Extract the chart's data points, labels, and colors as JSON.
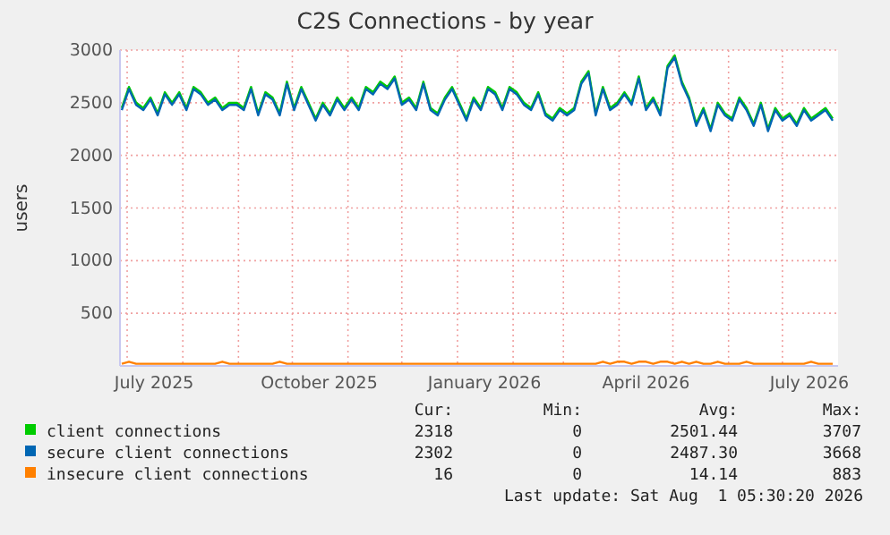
{
  "chart_data": {
    "type": "line",
    "title": "C2S Connections - by year",
    "ylabel": "users",
    "x": [
      "2025-06-28",
      "2025-07-02",
      "2025-07-06",
      "2025-07-10",
      "2025-07-14",
      "2025-07-18",
      "2025-07-22",
      "2025-07-26",
      "2025-07-30",
      "2025-08-03",
      "2025-08-07",
      "2025-08-11",
      "2025-08-15",
      "2025-08-19",
      "2025-08-23",
      "2025-08-27",
      "2025-08-31",
      "2025-09-04",
      "2025-09-08",
      "2025-09-12",
      "2025-09-16",
      "2025-09-20",
      "2025-09-24",
      "2025-09-28",
      "2025-10-02",
      "2025-10-06",
      "2025-10-10",
      "2025-10-14",
      "2025-10-18",
      "2025-10-22",
      "2025-10-26",
      "2025-10-30",
      "2025-11-03",
      "2025-11-07",
      "2025-11-11",
      "2025-11-15",
      "2025-11-19",
      "2025-11-23",
      "2025-11-27",
      "2025-12-01",
      "2025-12-05",
      "2025-12-09",
      "2025-12-13",
      "2025-12-17",
      "2025-12-21",
      "2025-12-25",
      "2025-12-29",
      "2026-01-02",
      "2026-01-06",
      "2026-01-10",
      "2026-01-14",
      "2026-01-18",
      "2026-01-22",
      "2026-01-26",
      "2026-01-30",
      "2026-02-03",
      "2026-02-07",
      "2026-02-11",
      "2026-02-15",
      "2026-02-19",
      "2026-02-23",
      "2026-02-27",
      "2026-03-03",
      "2026-03-07",
      "2026-03-11",
      "2026-03-15",
      "2026-03-19",
      "2026-03-23",
      "2026-03-27",
      "2026-03-31",
      "2026-04-04",
      "2026-04-08",
      "2026-04-12",
      "2026-04-16",
      "2026-04-20",
      "2026-04-24",
      "2026-04-28",
      "2026-05-02",
      "2026-05-06",
      "2026-05-10",
      "2026-05-14",
      "2026-05-18",
      "2026-05-22",
      "2026-05-26",
      "2026-05-30",
      "2026-06-03",
      "2026-06-07",
      "2026-06-11",
      "2026-06-15",
      "2026-06-19",
      "2026-06-23",
      "2026-06-27",
      "2026-07-01",
      "2026-07-05",
      "2026-07-09",
      "2026-07-13",
      "2026-07-17",
      "2026-07-21",
      "2026-07-25",
      "2026-07-29"
    ],
    "series": [
      {
        "name": "client connections",
        "color": "#00cc00",
        "values": [
          2450,
          2650,
          2500,
          2450,
          2550,
          2400,
          2600,
          2500,
          2600,
          2450,
          2650,
          2600,
          2500,
          2550,
          2450,
          2500,
          2500,
          2450,
          2650,
          2400,
          2600,
          2550,
          2400,
          2700,
          2450,
          2650,
          2500,
          2350,
          2500,
          2400,
          2550,
          2450,
          2550,
          2450,
          2650,
          2600,
          2700,
          2650,
          2750,
          2500,
          2550,
          2450,
          2700,
          2450,
          2400,
          2550,
          2650,
          2500,
          2350,
          2550,
          2450,
          2650,
          2600,
          2450,
          2650,
          2600,
          2500,
          2450,
          2600,
          2400,
          2350,
          2450,
          2400,
          2450,
          2700,
          2800,
          2400,
          2650,
          2450,
          2500,
          2600,
          2500,
          2750,
          2450,
          2550,
          2400,
          2850,
          2950,
          2700,
          2550,
          2300,
          2450,
          2250,
          2500,
          2400,
          2350,
          2550,
          2450,
          2300,
          2500,
          2250,
          2450,
          2350,
          2400,
          2300,
          2450,
          2350,
          2400,
          2450,
          2350
        ]
      },
      {
        "name": "secure client connections",
        "color": "#0066b3",
        "values": [
          2430,
          2630,
          2480,
          2430,
          2530,
          2380,
          2580,
          2480,
          2580,
          2430,
          2630,
          2580,
          2480,
          2530,
          2430,
          2480,
          2480,
          2430,
          2630,
          2380,
          2580,
          2530,
          2380,
          2680,
          2430,
          2630,
          2480,
          2330,
          2480,
          2380,
          2530,
          2430,
          2530,
          2430,
          2630,
          2580,
          2680,
          2630,
          2730,
          2480,
          2530,
          2430,
          2680,
          2430,
          2380,
          2530,
          2630,
          2480,
          2330,
          2530,
          2430,
          2630,
          2580,
          2430,
          2630,
          2580,
          2480,
          2430,
          2580,
          2380,
          2330,
          2430,
          2380,
          2430,
          2680,
          2780,
          2380,
          2630,
          2430,
          2480,
          2580,
          2480,
          2730,
          2430,
          2530,
          2380,
          2830,
          2930,
          2680,
          2530,
          2280,
          2430,
          2230,
          2480,
          2380,
          2330,
          2530,
          2430,
          2280,
          2480,
          2230,
          2430,
          2330,
          2380,
          2280,
          2430,
          2330,
          2380,
          2430,
          2330
        ]
      },
      {
        "name": "insecure client connections",
        "color": "#ff8000",
        "values": [
          20,
          40,
          20,
          20,
          20,
          20,
          20,
          20,
          20,
          20,
          20,
          20,
          20,
          20,
          40,
          20,
          20,
          20,
          20,
          20,
          20,
          20,
          40,
          20,
          20,
          20,
          20,
          20,
          20,
          20,
          20,
          20,
          20,
          20,
          20,
          20,
          20,
          20,
          20,
          20,
          20,
          20,
          20,
          20,
          20,
          20,
          20,
          20,
          20,
          20,
          20,
          20,
          20,
          20,
          20,
          20,
          20,
          20,
          20,
          20,
          20,
          20,
          20,
          20,
          20,
          20,
          20,
          40,
          20,
          40,
          40,
          20,
          40,
          40,
          20,
          40,
          40,
          20,
          40,
          20,
          40,
          20,
          20,
          40,
          20,
          20,
          20,
          40,
          20,
          20,
          20,
          20,
          20,
          20,
          20,
          20,
          40,
          20,
          20,
          20
        ]
      }
    ],
    "xlim": [
      "2025-06-27",
      "2026-08-01"
    ],
    "xticks": [
      {
        "value": "2025-07-01",
        "label": null
      },
      {
        "value": "2025-07-16",
        "label": "July 2025"
      },
      {
        "value": "2025-08-01",
        "label": null
      },
      {
        "value": "2025-09-01",
        "label": null
      },
      {
        "value": "2025-10-01",
        "label": null
      },
      {
        "value": "2025-10-16",
        "label": "October 2025"
      },
      {
        "value": "2025-11-01",
        "label": null
      },
      {
        "value": "2025-12-01",
        "label": null
      },
      {
        "value": "2026-01-01",
        "label": null
      },
      {
        "value": "2026-01-16",
        "label": "January 2026"
      },
      {
        "value": "2026-02-01",
        "label": null
      },
      {
        "value": "2026-03-01",
        "label": null
      },
      {
        "value": "2026-04-01",
        "label": null
      },
      {
        "value": "2026-04-16",
        "label": "April 2026"
      },
      {
        "value": "2026-05-01",
        "label": null
      },
      {
        "value": "2026-06-01",
        "label": null
      },
      {
        "value": "2026-07-01",
        "label": null
      },
      {
        "value": "2026-07-16",
        "label": "July 2026"
      }
    ],
    "ylim": [
      0,
      3000
    ],
    "yticks": [
      {
        "value": 0,
        "label": null
      },
      500,
      1000,
      1500,
      2000,
      2500,
      3000
    ],
    "grid": true,
    "legend": "bottom",
    "marker": "none",
    "line_style": "solid",
    "annotations": [
      "Cur:",
      "Min:",
      "Avg:",
      "Max:",
      "2318",
      "0",
      "2501.44",
      "3707",
      "2302",
      "0",
      "2487.30",
      "3668",
      "16",
      "0",
      "14.14",
      "883",
      "Last update: Sat Aug  1 05:30:20 2026"
    ]
  }
}
